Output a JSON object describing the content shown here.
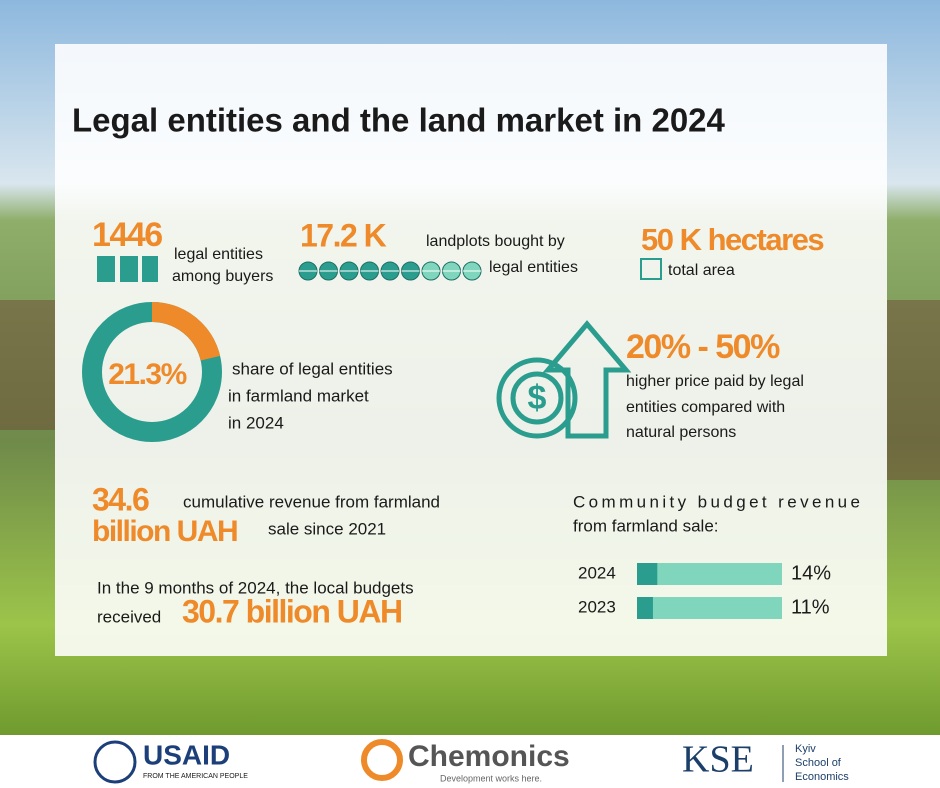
{
  "title": "Legal entities and the land market in 2024",
  "buyers": {
    "value": 1446,
    "lines": [
      "legal entities",
      "among buyers"
    ]
  },
  "landplots": {
    "value": "17.2 K",
    "lines": [
      "landplots bought by",
      "legal entities"
    ]
  },
  "area": {
    "value": "50 K hectares",
    "text": "total area"
  },
  "share": {
    "value": 21.3,
    "label": "21.3%",
    "lines": [
      "share of legal entities",
      "in farmland market",
      "in 2024"
    ]
  },
  "price": {
    "value": "20% - 50%",
    "lines": [
      "higher price paid by legal",
      "entities compared with",
      "natural persons"
    ]
  },
  "revenue": {
    "value": "34.6",
    "unit": "billion UAH",
    "lines": [
      "cumulative revenue from farmland",
      "sale since 2021"
    ]
  },
  "budgets": {
    "lines": [
      "In the 9 months of 2024, the local budgets",
      "received"
    ],
    "value": "30.7 billion UAH"
  },
  "community": {
    "lines": [
      "Community budget revenue",
      "from farmland sale:"
    ],
    "rows": [
      {
        "year": "2024",
        "value": 14,
        "label": "14%"
      },
      {
        "year": "2023",
        "value": 11,
        "label": "11%"
      }
    ]
  },
  "footer": {
    "usaid": "USAID",
    "usaid_sub": "FROM THE AMERICAN PEOPLE",
    "chemonics": "Chemonics",
    "chemonics_sub": "Development works here.",
    "kse": "KSE",
    "kse_lines": [
      "Kyiv",
      "School of",
      "Economics"
    ]
  }
}
